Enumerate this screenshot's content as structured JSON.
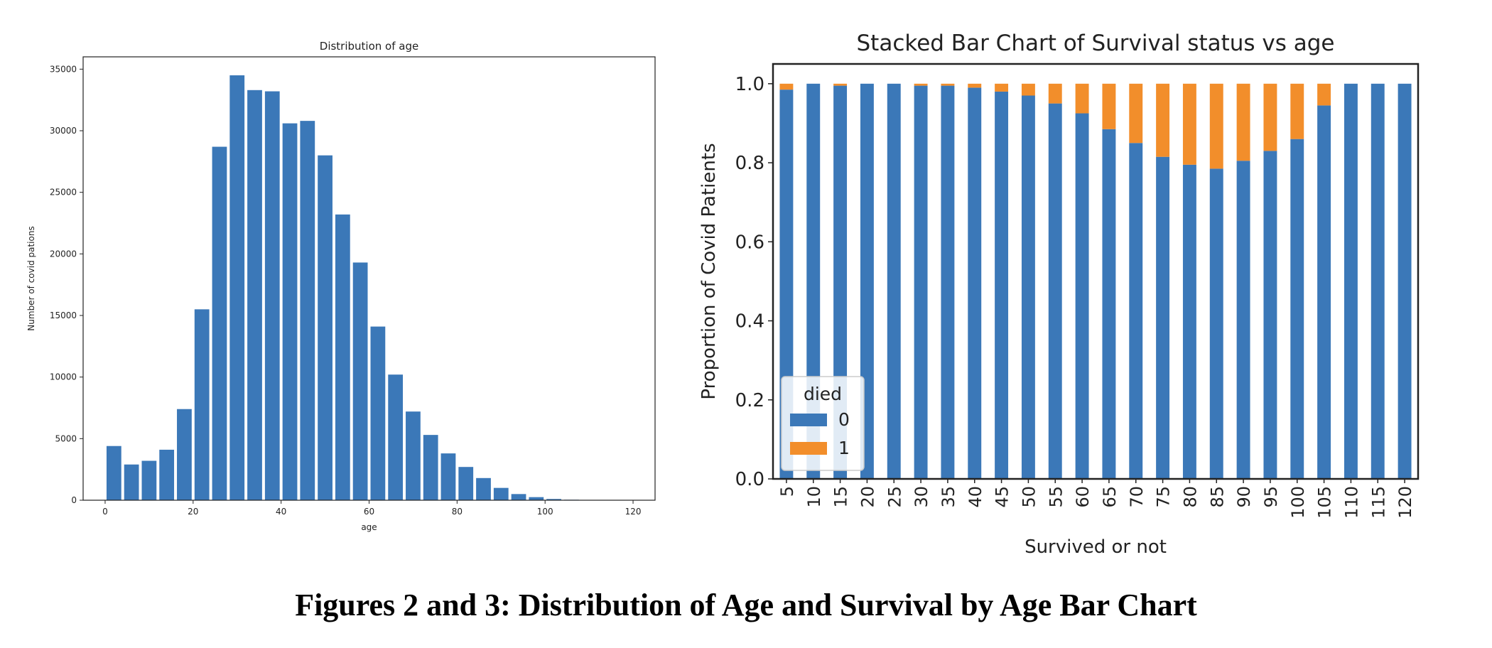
{
  "caption": "Figures 2 and 3: Distribution of Age and Survival by Age Bar Chart",
  "colors": {
    "blue": "#3b78b8",
    "orange": "#f28e2b",
    "axis": "#222222"
  },
  "chart_data": [
    {
      "type": "bar",
      "title": "Distribution of age",
      "xlabel": "age",
      "ylabel": "Number of covid pations",
      "xlim": [
        -5,
        125
      ],
      "ylim": [
        0,
        36000
      ],
      "xticks": [
        0,
        20,
        40,
        60,
        80,
        100,
        120
      ],
      "yticks": [
        0,
        5000,
        10000,
        15000,
        20000,
        25000,
        30000,
        35000
      ],
      "bin_width": 4,
      "bin_centers": [
        2,
        6,
        10,
        14,
        18,
        22,
        26,
        30,
        34,
        38,
        42,
        46,
        50,
        54,
        58,
        62,
        66,
        70,
        74,
        78,
        82,
        86,
        90,
        94,
        98,
        102,
        106,
        110,
        114,
        118
      ],
      "values": [
        4400,
        2900,
        3200,
        4100,
        7400,
        15500,
        28700,
        34500,
        33300,
        33200,
        30600,
        30800,
        28000,
        23200,
        19300,
        14100,
        10200,
        7200,
        5300,
        3800,
        2700,
        1800,
        1000,
        500,
        250,
        100,
        40,
        15,
        5,
        5
      ]
    },
    {
      "type": "bar",
      "stacked": true,
      "title": "Stacked Bar Chart of Survival status vs age",
      "xlabel": "Survived or not",
      "ylabel": "Proportion of Covid Patients",
      "ylim": [
        0,
        1.05
      ],
      "yticks": [
        "0.0",
        "0.2",
        "0.4",
        "0.6",
        "0.8",
        "1.0"
      ],
      "categories": [
        "5",
        "10",
        "15",
        "20",
        "25",
        "30",
        "35",
        "40",
        "45",
        "50",
        "55",
        "60",
        "65",
        "70",
        "75",
        "80",
        "85",
        "90",
        "95",
        "100",
        "105",
        "110",
        "115",
        "120"
      ],
      "legend": {
        "title": "died",
        "placement": "lower-left"
      },
      "series": [
        {
          "name": "0",
          "values": [
            0.985,
            1.0,
            0.995,
            1.0,
            1.0,
            0.995,
            0.995,
            0.99,
            0.98,
            0.97,
            0.95,
            0.925,
            0.885,
            0.85,
            0.815,
            0.795,
            0.785,
            0.805,
            0.83,
            0.86,
            0.945,
            1.0,
            1.0,
            1.0
          ]
        },
        {
          "name": "1",
          "values": [
            0.015,
            0.0,
            0.005,
            0.0,
            0.0,
            0.005,
            0.005,
            0.01,
            0.02,
            0.03,
            0.05,
            0.075,
            0.115,
            0.15,
            0.185,
            0.205,
            0.215,
            0.195,
            0.17,
            0.14,
            0.055,
            0.0,
            0.0,
            0.0
          ]
        }
      ]
    }
  ]
}
